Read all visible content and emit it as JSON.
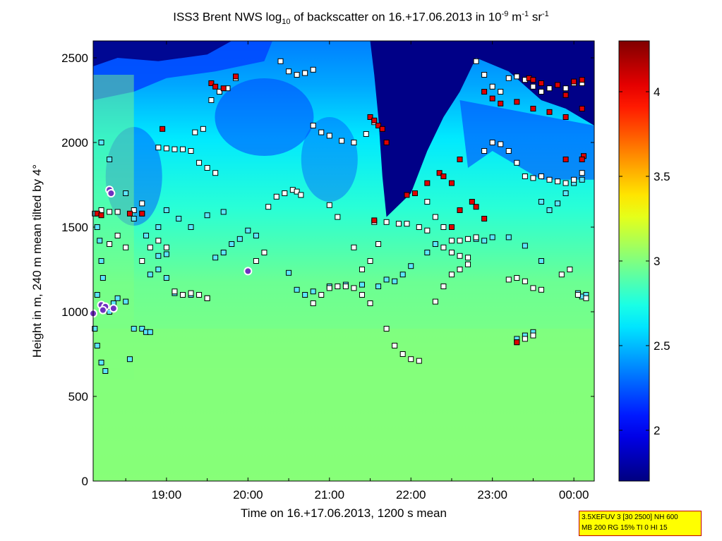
{
  "title": {
    "prefix": "ISS3 Brent NWS log",
    "sub": "10",
    "mid": " of backscatter on 16.+17.06.2013 in 10",
    "exp1": "-9",
    "unit1": " m",
    "exp2": "-1",
    "unit2": " sr",
    "exp3": "-1"
  },
  "chart_data": {
    "type": "heatmap",
    "xlabel": "Time on 16.+17.06.2013, 1200 s mean",
    "ylabel": "Height in m, 240 m mean tilted by 4°",
    "x_range_hours": [
      18.1,
      24.25
    ],
    "x_ticks": [
      {
        "value": 19.0,
        "label": "19:00"
      },
      {
        "value": 20.0,
        "label": "20:00"
      },
      {
        "value": 21.0,
        "label": "21:00"
      },
      {
        "value": 22.0,
        "label": "22:00"
      },
      {
        "value": 23.0,
        "label": "23:00"
      },
      {
        "value": 24.0,
        "label": "00:00"
      }
    ],
    "ylim": [
      0,
      2600
    ],
    "y_ticks": [
      0,
      500,
      1000,
      1500,
      2000,
      2500
    ],
    "colorbar": {
      "range": [
        1.7,
        4.3
      ],
      "ticks": [
        "2",
        "2.5",
        "3",
        "3.5",
        "4"
      ],
      "tick_values": [
        2,
        2.5,
        3,
        3.5,
        4
      ],
      "colormap": "jet"
    },
    "field_description": "log10 backscatter; lower layer ~2.9-3.05 (green), mid layer 2.5-2.8 (cyan), top dark blue (<1.9) at 2200-2600 m",
    "markers": {
      "white": [
        [
          18.3,
          1400
        ],
        [
          18.4,
          1450
        ],
        [
          18.5,
          1380
        ],
        [
          18.7,
          1300
        ],
        [
          18.8,
          1380
        ],
        [
          18.9,
          1420
        ],
        [
          19.0,
          1380
        ],
        [
          19.1,
          1120
        ],
        [
          19.2,
          1100
        ],
        [
          19.3,
          1110
        ],
        [
          19.4,
          1100
        ],
        [
          19.5,
          1080
        ],
        [
          18.9,
          1970
        ],
        [
          19.0,
          1965
        ],
        [
          19.1,
          1960
        ],
        [
          19.2,
          1960
        ],
        [
          19.3,
          1950
        ],
        [
          19.4,
          1880
        ],
        [
          19.5,
          1850
        ],
        [
          19.6,
          1820
        ],
        [
          19.55,
          2250
        ],
        [
          19.65,
          2300
        ],
        [
          19.75,
          2320
        ],
        [
          19.85,
          2380
        ],
        [
          19.35,
          2060
        ],
        [
          19.45,
          2080
        ],
        [
          20.1,
          1300
        ],
        [
          20.2,
          1350
        ],
        [
          20.25,
          1620
        ],
        [
          20.35,
          1680
        ],
        [
          20.45,
          1700
        ],
        [
          20.55,
          1720
        ],
        [
          20.6,
          1710
        ],
        [
          20.65,
          1690
        ],
        [
          20.4,
          2480
        ],
        [
          20.5,
          2420
        ],
        [
          20.6,
          2400
        ],
        [
          20.7,
          2410
        ],
        [
          20.8,
          2430
        ],
        [
          20.8,
          1050
        ],
        [
          20.9,
          1100
        ],
        [
          21.0,
          1140
        ],
        [
          21.1,
          1150
        ],
        [
          21.2,
          1150
        ],
        [
          21.3,
          1140
        ],
        [
          21.4,
          1100
        ],
        [
          21.5,
          1050
        ],
        [
          20.8,
          2100
        ],
        [
          20.9,
          2060
        ],
        [
          21.0,
          2040
        ],
        [
          21.15,
          2010
        ],
        [
          21.3,
          2000
        ],
        [
          21.45,
          2050
        ],
        [
          21.55,
          2120
        ],
        [
          21.0,
          1630
        ],
        [
          21.1,
          1560
        ],
        [
          21.3,
          1380
        ],
        [
          21.4,
          1250
        ],
        [
          21.5,
          1300
        ],
        [
          21.6,
          1400
        ],
        [
          21.55,
          1530
        ],
        [
          21.7,
          1530
        ],
        [
          21.85,
          1520
        ],
        [
          21.95,
          1520
        ],
        [
          22.1,
          1500
        ],
        [
          22.2,
          1480
        ],
        [
          21.7,
          900
        ],
        [
          21.8,
          800
        ],
        [
          21.9,
          750
        ],
        [
          22.0,
          720
        ],
        [
          22.1,
          710
        ],
        [
          22.2,
          1650
        ],
        [
          22.3,
          1560
        ],
        [
          22.4,
          1500
        ],
        [
          22.5,
          1420
        ],
        [
          22.6,
          1420
        ],
        [
          22.7,
          1430
        ],
        [
          22.8,
          1440
        ],
        [
          22.4,
          1150
        ],
        [
          22.5,
          1220
        ],
        [
          22.6,
          1250
        ],
        [
          22.7,
          1280
        ],
        [
          22.3,
          1060
        ],
        [
          22.4,
          1380
        ],
        [
          22.5,
          1350
        ],
        [
          22.6,
          1330
        ],
        [
          22.7,
          1320
        ],
        [
          22.9,
          1950
        ],
        [
          23.0,
          2000
        ],
        [
          23.1,
          1990
        ],
        [
          23.2,
          1950
        ],
        [
          23.3,
          1880
        ],
        [
          23.4,
          1800
        ],
        [
          23.5,
          1790
        ],
        [
          23.6,
          1800
        ],
        [
          23.7,
          1780
        ],
        [
          23.8,
          1770
        ],
        [
          23.9,
          1760
        ],
        [
          24.0,
          1780
        ],
        [
          24.1,
          1820
        ],
        [
          22.8,
          2480
        ],
        [
          22.9,
          2400
        ],
        [
          23.0,
          2330
        ],
        [
          23.1,
          2300
        ],
        [
          23.2,
          2380
        ],
        [
          23.3,
          2390
        ],
        [
          23.4,
          2370
        ],
        [
          23.5,
          2330
        ],
        [
          23.6,
          2300
        ],
        [
          23.7,
          2320
        ],
        [
          23.9,
          2320
        ],
        [
          24.0,
          2350
        ],
        [
          24.1,
          2350
        ],
        [
          23.2,
          1190
        ],
        [
          23.3,
          1200
        ],
        [
          23.4,
          1180
        ],
        [
          23.5,
          1140
        ],
        [
          23.6,
          1130
        ],
        [
          23.85,
          1220
        ],
        [
          23.95,
          1250
        ],
        [
          24.05,
          1100
        ],
        [
          24.15,
          1080
        ],
        [
          23.3,
          820
        ],
        [
          23.4,
          840
        ],
        [
          23.5,
          860
        ],
        [
          18.2,
          1600
        ],
        [
          18.3,
          1590
        ],
        [
          18.4,
          1590
        ],
        [
          18.6,
          1600
        ],
        [
          18.7,
          1640
        ]
      ],
      "cyan": [
        [
          18.12,
          1580
        ],
        [
          18.15,
          1500
        ],
        [
          18.18,
          1420
        ],
        [
          18.2,
          1300
        ],
        [
          18.22,
          1200
        ],
        [
          18.15,
          1100
        ],
        [
          18.12,
          900
        ],
        [
          18.15,
          800
        ],
        [
          18.2,
          700
        ],
        [
          18.25,
          650
        ],
        [
          18.3,
          1000
        ],
        [
          18.35,
          1050
        ],
        [
          18.4,
          1080
        ],
        [
          18.5,
          1060
        ],
        [
          18.6,
          900
        ],
        [
          18.7,
          900
        ],
        [
          18.75,
          880
        ],
        [
          18.8,
          880
        ],
        [
          18.55,
          720
        ],
        [
          18.8,
          1220
        ],
        [
          18.9,
          1250
        ],
        [
          19.0,
          1200
        ],
        [
          19.1,
          1110
        ],
        [
          19.3,
          1100
        ],
        [
          19.5,
          1080
        ],
        [
          18.6,
          1550
        ],
        [
          18.75,
          1450
        ],
        [
          18.9,
          1500
        ],
        [
          19.0,
          1600
        ],
        [
          19.15,
          1550
        ],
        [
          19.3,
          1500
        ],
        [
          19.5,
          1570
        ],
        [
          19.7,
          1590
        ],
        [
          18.2,
          2000
        ],
        [
          18.3,
          1900
        ],
        [
          18.5,
          1700
        ],
        [
          18.7,
          1580
        ],
        [
          18.9,
          1330
        ],
        [
          19.0,
          1340
        ],
        [
          19.6,
          1320
        ],
        [
          19.7,
          1350
        ],
        [
          19.8,
          1400
        ],
        [
          19.9,
          1430
        ],
        [
          20.0,
          1480
        ],
        [
          20.1,
          1450
        ],
        [
          20.5,
          1230
        ],
        [
          20.6,
          1130
        ],
        [
          20.7,
          1100
        ],
        [
          20.8,
          1120
        ],
        [
          21.0,
          1150
        ],
        [
          21.2,
          1160
        ],
        [
          21.4,
          1160
        ],
        [
          21.6,
          1150
        ],
        [
          21.7,
          1190
        ],
        [
          21.8,
          1180
        ],
        [
          21.9,
          1220
        ],
        [
          22.0,
          1270
        ],
        [
          22.2,
          1350
        ],
        [
          22.3,
          1400
        ],
        [
          23.3,
          840
        ],
        [
          23.4,
          860
        ],
        [
          23.5,
          880
        ],
        [
          23.6,
          1650
        ],
        [
          23.7,
          1600
        ],
        [
          23.8,
          1640
        ],
        [
          23.9,
          1700
        ],
        [
          24.0,
          1760
        ],
        [
          24.1,
          1780
        ],
        [
          22.8,
          1430
        ],
        [
          22.9,
          1420
        ],
        [
          23.0,
          1440
        ],
        [
          23.2,
          1440
        ],
        [
          23.4,
          1390
        ],
        [
          23.6,
          1300
        ],
        [
          24.05,
          1110
        ],
        [
          24.1,
          1090
        ],
        [
          24.15,
          1100
        ]
      ],
      "red": [
        [
          18.15,
          1580
        ],
        [
          18.2,
          1570
        ],
        [
          19.55,
          2350
        ],
        [
          19.6,
          2330
        ],
        [
          19.7,
          2320
        ],
        [
          19.85,
          2390
        ],
        [
          18.95,
          2080
        ],
        [
          18.55,
          1580
        ],
        [
          18.7,
          1580
        ],
        [
          21.5,
          2150
        ],
        [
          21.55,
          2130
        ],
        [
          21.6,
          2100
        ],
        [
          21.65,
          2080
        ],
        [
          21.7,
          2000
        ],
        [
          21.55,
          1540
        ],
        [
          21.95,
          1690
        ],
        [
          22.05,
          1700
        ],
        [
          22.2,
          1760
        ],
        [
          22.35,
          1820
        ],
        [
          22.4,
          1800
        ],
        [
          22.5,
          1500
        ],
        [
          22.6,
          1600
        ],
        [
          22.75,
          1650
        ],
        [
          22.8,
          1620
        ],
        [
          22.9,
          1550
        ],
        [
          22.5,
          1760
        ],
        [
          22.6,
          1900
        ],
        [
          22.9,
          2300
        ],
        [
          23.0,
          2260
        ],
        [
          23.1,
          2230
        ],
        [
          23.3,
          2240
        ],
        [
          23.5,
          2200
        ],
        [
          23.7,
          2180
        ],
        [
          23.9,
          2150
        ],
        [
          24.1,
          2200
        ],
        [
          23.45,
          2380
        ],
        [
          23.5,
          2370
        ],
        [
          23.6,
          2350
        ],
        [
          24.0,
          2360
        ],
        [
          24.1,
          2370
        ],
        [
          24.12,
          1920
        ],
        [
          24.1,
          1900
        ],
        [
          23.9,
          1900
        ],
        [
          23.9,
          2280
        ],
        [
          23.8,
          2340
        ],
        [
          23.3,
          820
        ]
      ],
      "purple_dots": [
        [
          18.1,
          990
        ],
        [
          18.2,
          1040
        ],
        [
          18.25,
          1030
        ],
        [
          18.35,
          1020
        ],
        [
          18.3,
          1720
        ],
        [
          18.32,
          1700
        ],
        [
          20.0,
          1240
        ],
        [
          18.22,
          1010
        ]
      ]
    }
  },
  "infobox": {
    "line1": "3.5XEFUV 3 [30 2500] NH 600",
    "line2": "MB 200 RG 15% TI 0 HI 15"
  }
}
